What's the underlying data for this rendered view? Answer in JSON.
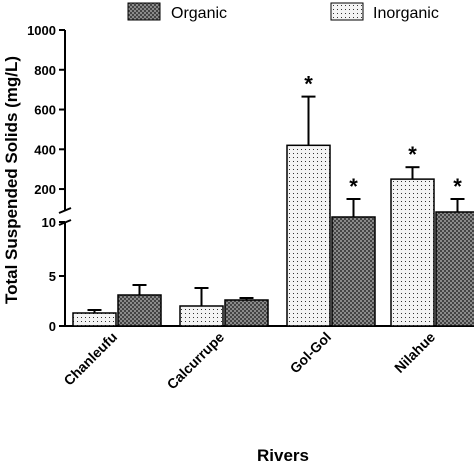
{
  "chart_data": {
    "type": "bar",
    "title": "",
    "xlabel": "Rivers",
    "ylabel": "Total Suspended Solids (mg/L)",
    "categories": [
      "Chanleufu",
      "Calcurrupe",
      "Gol-Gol",
      "Nilahue"
    ],
    "series": [
      {
        "name": "Inorganic",
        "pattern": "dots",
        "fill": "#f4f4f4",
        "values": [
          1.3,
          2.0,
          420,
          250
        ],
        "errors": [
          0.3,
          1.8,
          245,
          60
        ]
      },
      {
        "name": "Organic",
        "pattern": "crosshatch",
        "fill": "#5a5a5a",
        "values": [
          3.1,
          2.6,
          10.5,
          11.0
        ],
        "errors": [
          1.0,
          0.2,
          0.6,
          0.4
        ]
      }
    ],
    "significance": [
      {
        "category": "Gol-Gol",
        "series": "Inorganic",
        "label": "*"
      },
      {
        "category": "Gol-Gol",
        "series": "Organic",
        "label": "*"
      },
      {
        "category": "Nilahue",
        "series": "Inorganic",
        "label": "*"
      },
      {
        "category": "Nilahue",
        "series": "Organic",
        "label": "*"
      }
    ],
    "y_axis": {
      "broken": true,
      "segments": [
        {
          "min": 0,
          "max": 8,
          "ticks": [
            0,
            5
          ]
        },
        {
          "min": 9,
          "max": 11,
          "ticks": [
            10
          ]
        },
        {
          "min": 150,
          "max": 1000,
          "ticks": [
            200,
            400,
            600,
            800,
            1000
          ]
        }
      ]
    },
    "legend_placement": "top",
    "grid": false
  }
}
